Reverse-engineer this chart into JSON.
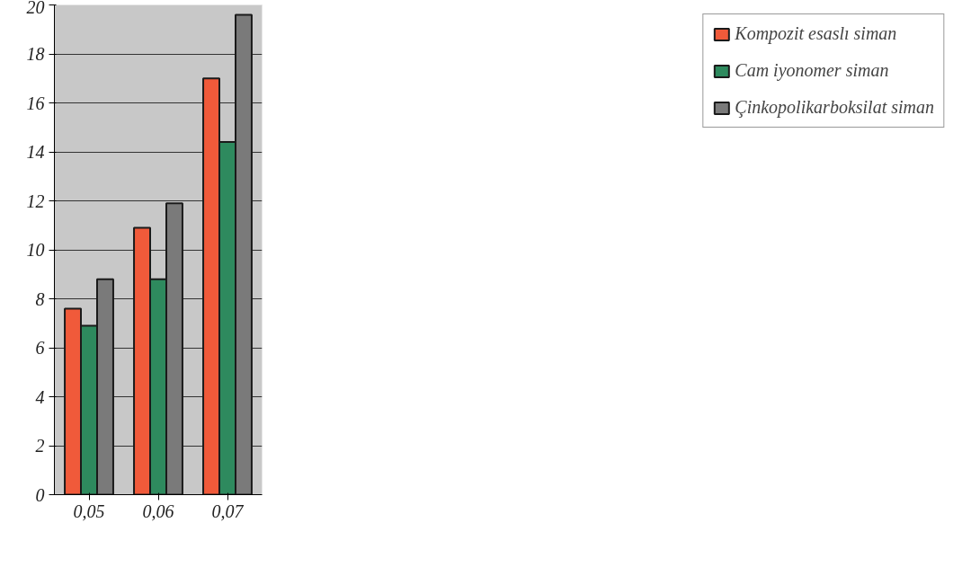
{
  "chart_data": {
    "type": "bar",
    "categories": [
      "0,05",
      "0,06",
      "0,07"
    ],
    "series": [
      {
        "name": "Kompozit esaslı siman",
        "color": "#f05a3a",
        "values": [
          7.6,
          10.9,
          17.0
        ]
      },
      {
        "name": "Cam iyonomer siman",
        "color": "#2e8a5e",
        "values": [
          6.9,
          8.8,
          14.4
        ]
      },
      {
        "name": "Çinkopolikarboksilat siman",
        "color": "#7a7a7a",
        "values": [
          8.8,
          11.9,
          19.6
        ]
      }
    ],
    "ylim": [
      0,
      20
    ],
    "yticks": [
      0,
      2,
      4,
      6,
      8,
      10,
      12,
      14,
      16,
      18,
      20
    ],
    "grid": "y",
    "legend": "right"
  }
}
